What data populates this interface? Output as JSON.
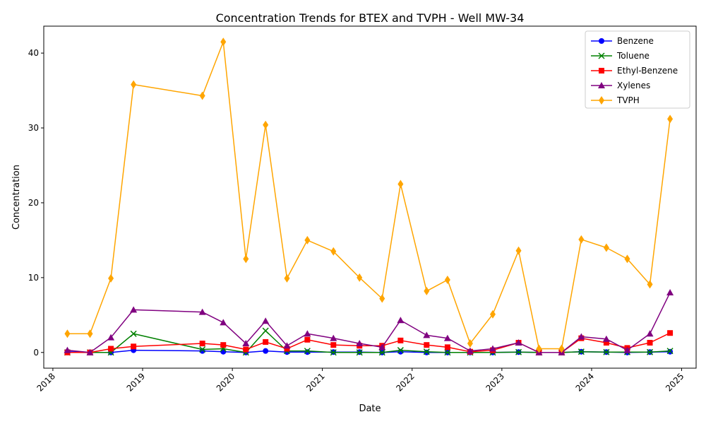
{
  "chart_data": {
    "type": "line",
    "title": "Concentration Trends for BTEX and TVPH - Well MW-34",
    "xlabel": "Date",
    "ylabel": "Concentration",
    "xlim": [
      "2017-11-25",
      "2025-03-01"
    ],
    "ylim": [
      -2.1,
      43.6
    ],
    "x_ticks": [
      "2018",
      "2019",
      "2020",
      "2021",
      "2022",
      "2023",
      "2024",
      "2025"
    ],
    "y_ticks": [
      "0",
      "10",
      "20",
      "30",
      "40"
    ],
    "legend_position": "top-right",
    "grid": false,
    "x": [
      "2018-03-01",
      "2018-06-01",
      "2018-08-25",
      "2018-11-25",
      "2019-09-01",
      "2019-11-25",
      "2020-02-25",
      "2020-05-15",
      "2020-08-10",
      "2020-11-01",
      "2021-02-15",
      "2021-06-01",
      "2021-09-01",
      "2021-11-15",
      "2022-03-01",
      "2022-05-25",
      "2022-08-25",
      "2022-11-25",
      "2023-03-10",
      "2023-06-01",
      "2023-09-01",
      "2023-11-20",
      "2024-03-01",
      "2024-05-25",
      "2024-08-25",
      "2024-11-15"
    ],
    "series": [
      {
        "name": "Benzene",
        "color": "#0000ff",
        "marker": "circle",
        "values": [
          0.1,
          0.0,
          0.0,
          0.3,
          0.2,
          0.1,
          0.0,
          0.2,
          0.05,
          0.05,
          0.05,
          0.05,
          0.0,
          0.1,
          0.0,
          0.0,
          0.0,
          0.0,
          0.05,
          0.0,
          0.0,
          0.1,
          0.05,
          0.0,
          0.05,
          0.1
        ]
      },
      {
        "name": "Toluene",
        "color": "#008000",
        "marker": "x",
        "values": [
          0.0,
          0.0,
          0.0,
          2.5,
          0.4,
          0.5,
          0.0,
          2.9,
          0.2,
          0.2,
          0.0,
          0.0,
          0.0,
          0.3,
          0.1,
          0.0,
          0.0,
          0.0,
          0.05,
          0.0,
          0.0,
          0.1,
          0.05,
          0.05,
          0.05,
          0.2
        ]
      },
      {
        "name": "Ethyl-Benzene",
        "color": "#ff0000",
        "marker": "square",
        "values": [
          0.0,
          0.0,
          0.5,
          0.8,
          1.2,
          1.0,
          0.4,
          1.4,
          0.5,
          1.7,
          1.0,
          0.9,
          0.9,
          1.6,
          1.0,
          0.7,
          0.1,
          0.3,
          1.3,
          0.0,
          0.0,
          1.9,
          1.3,
          0.6,
          1.3,
          2.6
        ]
      },
      {
        "name": "Xylenes",
        "color": "#800080",
        "marker": "triangle",
        "values": [
          0.3,
          0.0,
          2.0,
          5.7,
          5.4,
          4.0,
          1.2,
          4.2,
          0.9,
          2.5,
          1.9,
          1.2,
          0.7,
          4.3,
          2.3,
          1.9,
          0.2,
          0.5,
          1.3,
          0.0,
          0.0,
          2.1,
          1.8,
          0.3,
          2.5,
          8.0
        ]
      },
      {
        "name": "TVPH",
        "color": "#ffa500",
        "marker": "diamond",
        "values": [
          2.5,
          2.5,
          9.9,
          35.8,
          34.3,
          41.5,
          12.5,
          30.4,
          9.9,
          15.0,
          13.5,
          10.0,
          7.2,
          22.5,
          8.2,
          9.7,
          1.2,
          5.1,
          13.6,
          0.5,
          0.5,
          15.1,
          14.0,
          12.5,
          9.1,
          31.2
        ]
      }
    ]
  }
}
